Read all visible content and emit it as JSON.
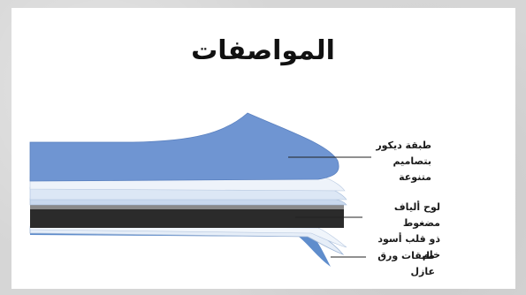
{
  "title": "المواصفات",
  "labels": {
    "decor_line1": "طبقة ديكور",
    "decor_line2": "بتصاميم متنوعة",
    "board_line1": "لوح ألياف مضغوط",
    "board_line2": "ذو قلب أسود خام",
    "paper": "طبقات ورق عازل"
  },
  "colors": {
    "decor_layer": "#6f95d2",
    "core_board": "#2b2b2b",
    "core_edge": "#8a8a8a",
    "paper_layers": "#d6e4f4",
    "bottom_layer": "#5f8dcc"
  }
}
